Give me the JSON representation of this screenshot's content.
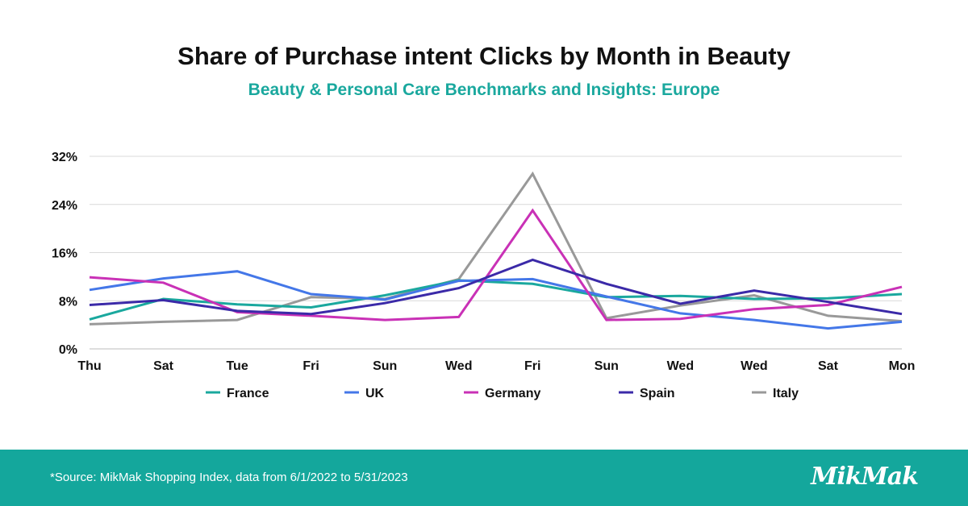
{
  "header": {
    "title": "Share of Purchase intent Clicks by Month in Beauty",
    "subtitle": "Beauty & Personal Care Benchmarks and Insights: Europe"
  },
  "colors": {
    "subtitle": "#1aa89e",
    "footer_bg": "#14a79c",
    "grid": "#d9d9d9",
    "text": "#111111"
  },
  "footer": {
    "source": "*Source: MikMak Shopping Index, data from 6/1/2022 to 5/31/2023",
    "logo": "MikMak"
  },
  "chart_data": {
    "type": "line",
    "categories": [
      "Thu",
      "Sat",
      "Tue",
      "Fri",
      "Sun",
      "Wed",
      "Fri",
      "Sun",
      "Wed",
      "Wed",
      "Sat",
      "Mon"
    ],
    "ylim": [
      0,
      32
    ],
    "yticks": [
      0,
      8,
      16,
      24,
      32
    ],
    "ytick_labels": [
      "0%",
      "8%",
      "16%",
      "24%",
      "32%"
    ],
    "grid": true,
    "legend_position": "bottom",
    "series": [
      {
        "name": "France",
        "color": "#1aa89e",
        "values": [
          4.9,
          8.3,
          7.4,
          6.9,
          8.9,
          11.4,
          10.8,
          8.6,
          8.8,
          8.3,
          8.4,
          9.1
        ]
      },
      {
        "name": "UK",
        "color": "#4477e8",
        "values": [
          9.8,
          11.7,
          12.9,
          9.1,
          8.2,
          11.3,
          11.6,
          8.7,
          5.9,
          4.8,
          3.4,
          4.5
        ]
      },
      {
        "name": "Germany",
        "color": "#c931b6",
        "values": [
          11.9,
          11.0,
          6.1,
          5.5,
          4.8,
          5.3,
          23.0,
          4.8,
          5.0,
          6.6,
          7.3,
          10.3
        ]
      },
      {
        "name": "Spain",
        "color": "#3b2aa8",
        "values": [
          7.3,
          8.1,
          6.3,
          5.8,
          7.6,
          10.1,
          14.8,
          10.8,
          7.5,
          9.7,
          7.8,
          5.8
        ]
      },
      {
        "name": "Italy",
        "color": "#999999",
        "values": [
          4.1,
          4.5,
          4.8,
          8.6,
          8.3,
          11.6,
          29.1,
          5.1,
          7.2,
          8.9,
          5.5,
          4.6
        ]
      }
    ]
  }
}
